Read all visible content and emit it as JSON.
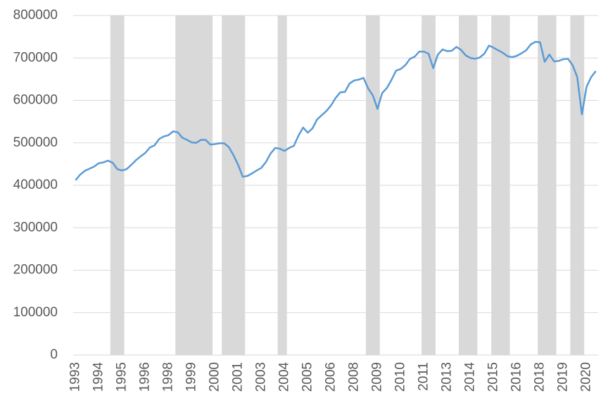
{
  "chart_data": {
    "type": "line",
    "categories": [
      "1993",
      null,
      null,
      null,
      null,
      "1994",
      null,
      null,
      null,
      null,
      "1995",
      null,
      null,
      null,
      null,
      "1996",
      null,
      null,
      null,
      null,
      "1998",
      null,
      null,
      null,
      null,
      "1999",
      null,
      null,
      null,
      null,
      "2000",
      null,
      null,
      null,
      null,
      "2001",
      null,
      null,
      null,
      null,
      "2003",
      null,
      null,
      null,
      null,
      "2004",
      null,
      null,
      null,
      null,
      "2005",
      null,
      null,
      null,
      null,
      "2006",
      null,
      null,
      null,
      null,
      "2008",
      null,
      null,
      null,
      null,
      "2009",
      null,
      null,
      null,
      null,
      "2010",
      null,
      null,
      null,
      null,
      "2011",
      null,
      null,
      null,
      null,
      "2013",
      null,
      null,
      null,
      null,
      "2014",
      null,
      null,
      null,
      null,
      "2015",
      null,
      null,
      null,
      null,
      "2016",
      null,
      null,
      null,
      null,
      "2018",
      null,
      null,
      null,
      null,
      "2019",
      null,
      null,
      null,
      null,
      "2020",
      null,
      null
    ],
    "series": [
      {
        "color": "#5b9bd5",
        "values": [
          412000,
          425000,
          434000,
          439000,
          444000,
          452000,
          454000,
          458000,
          453000,
          438000,
          435000,
          438000,
          448000,
          459000,
          468000,
          476000,
          489000,
          494000,
          509000,
          515000,
          518000,
          527000,
          525000,
          512000,
          507000,
          501000,
          500000,
          507000,
          507000,
          496000,
          497000,
          499000,
          499000,
          490000,
          471000,
          448000,
          420000,
          422000,
          428000,
          435000,
          441000,
          455000,
          475000,
          488000,
          486000,
          481000,
          488000,
          493000,
          517000,
          536000,
          524000,
          534000,
          555000,
          565000,
          575000,
          588000,
          606000,
          619000,
          620000,
          640000,
          647000,
          649000,
          653000,
          628000,
          612000,
          580000,
          617000,
          629000,
          648000,
          670000,
          674000,
          683000,
          698000,
          703000,
          715000,
          715000,
          710000,
          676000,
          708000,
          720000,
          716000,
          717000,
          726000,
          719000,
          706000,
          700000,
          698000,
          701000,
          710000,
          729000,
          724000,
          718000,
          712000,
          704000,
          702000,
          705000,
          711000,
          718000,
          732000,
          738000,
          737000,
          691000,
          708000,
          692000,
          693000,
          697000,
          698000,
          683000,
          655000,
          567000,
          632000,
          655000,
          669000
        ]
      }
    ],
    "shaded": {
      "color": "#d9d9d9",
      "ranges": [
        [
          8,
          10
        ],
        [
          22,
          29
        ],
        [
          32,
          36
        ],
        [
          44,
          45
        ],
        [
          63,
          65
        ],
        [
          75,
          77
        ],
        [
          83,
          86
        ],
        [
          90,
          93
        ],
        [
          100,
          103
        ],
        [
          107,
          109
        ]
      ]
    },
    "ylim": [
      0,
      800000
    ],
    "yticks": [
      0,
      100000,
      200000,
      300000,
      400000,
      500000,
      600000,
      700000,
      800000
    ],
    "grid": true
  }
}
